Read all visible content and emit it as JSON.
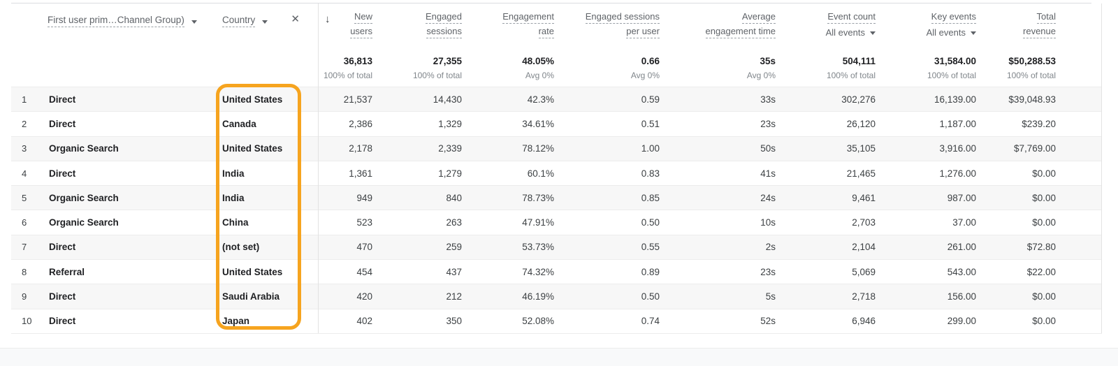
{
  "header": {
    "primary_dimension": "First user prim…Channel Group)",
    "secondary_dimension": "Country",
    "close_icon": "✕",
    "sort_icon": "↓"
  },
  "columns": [
    {
      "id": "new-users",
      "lines": [
        "New",
        "users"
      ],
      "sublabel": "",
      "total": "36,813",
      "total_note": "100% of total"
    },
    {
      "id": "engaged-sessions",
      "lines": [
        "Engaged",
        "sessions"
      ],
      "sublabel": "",
      "total": "27,355",
      "total_note": "100% of total"
    },
    {
      "id": "engagement-rate",
      "lines": [
        "Engagement",
        "rate"
      ],
      "sublabel": "",
      "total": "48.05%",
      "total_note": "Avg 0%"
    },
    {
      "id": "engaged-sessions-per-user",
      "lines": [
        "Engaged sessions",
        "per user"
      ],
      "sublabel": "",
      "total": "0.66",
      "total_note": "Avg 0%"
    },
    {
      "id": "average-engagement-time",
      "lines": [
        "Average",
        "engagement time"
      ],
      "sublabel": "",
      "total": "35s",
      "total_note": "Avg 0%"
    },
    {
      "id": "event-count",
      "lines": [
        "Event count"
      ],
      "sublabel": "All events",
      "total": "504,111",
      "total_note": "100% of total"
    },
    {
      "id": "key-events",
      "lines": [
        "Key events"
      ],
      "sublabel": "All events",
      "total": "31,584.00",
      "total_note": "100% of total"
    },
    {
      "id": "total-revenue",
      "lines": [
        "Total",
        "revenue"
      ],
      "sublabel": "",
      "total": "$50,288.53",
      "total_note": "100% of total"
    }
  ],
  "rows": [
    {
      "num": "1",
      "channel": "Direct",
      "country": "United States",
      "values": [
        "21,537",
        "14,430",
        "42.3%",
        "0.59",
        "33s",
        "302,276",
        "16,139.00",
        "$39,048.93"
      ]
    },
    {
      "num": "2",
      "channel": "Direct",
      "country": "Canada",
      "values": [
        "2,386",
        "1,329",
        "34.61%",
        "0.51",
        "23s",
        "26,120",
        "1,187.00",
        "$239.20"
      ]
    },
    {
      "num": "3",
      "channel": "Organic Search",
      "country": "United States",
      "values": [
        "2,178",
        "2,339",
        "78.12%",
        "1.00",
        "50s",
        "35,105",
        "3,916.00",
        "$7,769.00"
      ]
    },
    {
      "num": "4",
      "channel": "Direct",
      "country": "India",
      "values": [
        "1,361",
        "1,279",
        "60.1%",
        "0.83",
        "41s",
        "21,465",
        "1,276.00",
        "$0.00"
      ]
    },
    {
      "num": "5",
      "channel": "Organic Search",
      "country": "India",
      "values": [
        "949",
        "840",
        "78.73%",
        "0.85",
        "24s",
        "9,461",
        "987.00",
        "$0.00"
      ]
    },
    {
      "num": "6",
      "channel": "Organic Search",
      "country": "China",
      "values": [
        "523",
        "263",
        "47.91%",
        "0.50",
        "10s",
        "2,703",
        "37.00",
        "$0.00"
      ]
    },
    {
      "num": "7",
      "channel": "Direct",
      "country": "(not set)",
      "values": [
        "470",
        "259",
        "53.73%",
        "0.55",
        "2s",
        "2,104",
        "261.00",
        "$72.80"
      ]
    },
    {
      "num": "8",
      "channel": "Referral",
      "country": "United States",
      "values": [
        "454",
        "437",
        "74.32%",
        "0.89",
        "23s",
        "5,069",
        "543.00",
        "$22.00"
      ]
    },
    {
      "num": "9",
      "channel": "Direct",
      "country": "Saudi Arabia",
      "values": [
        "420",
        "212",
        "46.19%",
        "0.50",
        "5s",
        "2,718",
        "156.00",
        "$0.00"
      ]
    },
    {
      "num": "10",
      "channel": "Direct",
      "country": "Japan",
      "values": [
        "402",
        "350",
        "52.08%",
        "0.74",
        "52s",
        "6,946",
        "299.00",
        "$0.00"
      ]
    }
  ],
  "colors": {
    "highlight": "#F6A41F"
  }
}
